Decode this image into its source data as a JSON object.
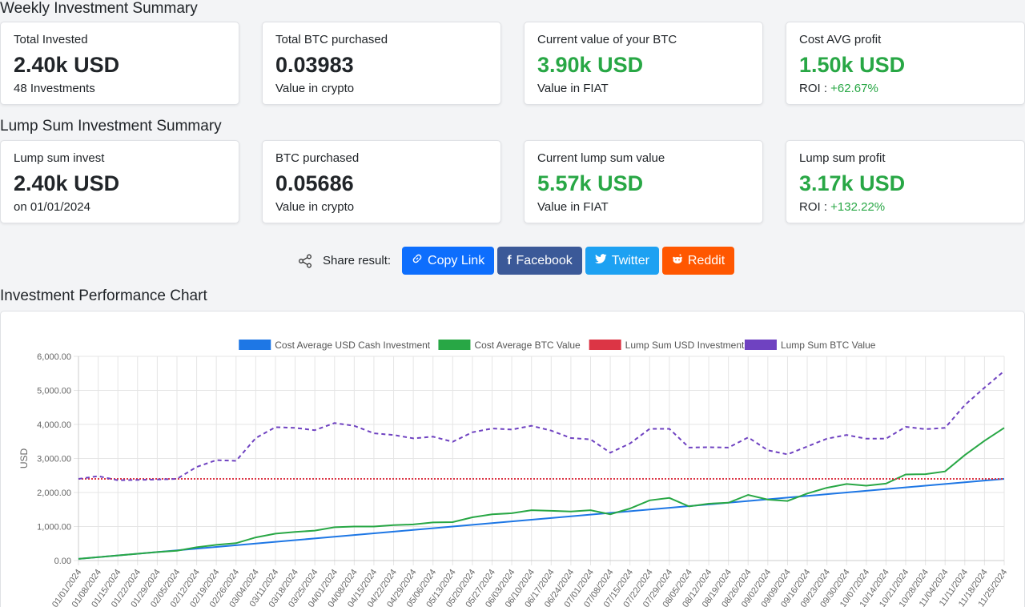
{
  "weekly": {
    "title": "Weekly Investment Summary",
    "cards": [
      {
        "label": "Total Invested",
        "value": "2.40k USD",
        "sub": "48 Investments",
        "green": false
      },
      {
        "label": "Total BTC purchased",
        "value": "0.03983",
        "sub": "Value in crypto",
        "green": false
      },
      {
        "label": "Current value of your BTC",
        "value": "3.90k USD",
        "sub": "Value in FIAT",
        "green": true
      },
      {
        "label": "Cost AVG profit",
        "value": "1.50k USD",
        "sub_prefix": "ROI : ",
        "sub_pct": "+62.67%",
        "green": true
      }
    ]
  },
  "lump": {
    "title": "Lump Sum Investment Summary",
    "cards": [
      {
        "label": "Lump sum invest",
        "value": "2.40k USD",
        "sub": "on 01/01/2024",
        "green": false
      },
      {
        "label": "BTC purchased",
        "value": "0.05686",
        "sub": "Value in crypto",
        "green": false
      },
      {
        "label": "Current lump sum value",
        "value": "5.57k USD",
        "sub": "Value in FIAT",
        "green": true
      },
      {
        "label": "Lump sum profit",
        "value": "3.17k USD",
        "sub_prefix": "ROI : ",
        "sub_pct": "+132.22%",
        "green": true
      }
    ]
  },
  "share": {
    "label": "Share result:",
    "copy": "Copy Link",
    "facebook": "Facebook",
    "twitter": "Twitter",
    "reddit": "Reddit",
    "colors": {
      "copy": "#0d6efd",
      "facebook": "#3b5998",
      "twitter": "#1da1f2",
      "reddit": "#ff5700"
    }
  },
  "chart_title": "Investment Performance Chart",
  "chart_data": {
    "type": "line",
    "ylabel": "USD",
    "ylim": [
      0,
      6000
    ],
    "yticks": [
      "0.00",
      "1,000.00",
      "2,000.00",
      "3,000.00",
      "4,000.00",
      "5,000.00",
      "6,000.00"
    ],
    "x": [
      "01/01/2024",
      "01/08/2024",
      "01/15/2024",
      "01/22/2024",
      "01/29/2024",
      "02/05/2024",
      "02/12/2024",
      "02/19/2024",
      "02/26/2024",
      "03/04/2024",
      "03/11/2024",
      "03/18/2024",
      "03/25/2024",
      "04/01/2024",
      "04/08/2024",
      "04/15/2024",
      "04/22/2024",
      "04/29/2024",
      "05/06/2024",
      "05/13/2024",
      "05/20/2024",
      "05/27/2024",
      "06/03/2024",
      "06/10/2024",
      "06/17/2024",
      "06/24/2024",
      "07/01/2024",
      "07/08/2024",
      "07/15/2024",
      "07/22/2024",
      "07/29/2024",
      "08/05/2024",
      "08/12/2024",
      "08/19/2024",
      "08/26/2024",
      "09/02/2024",
      "09/09/2024",
      "09/16/2024",
      "09/23/2024",
      "09/30/2024",
      "10/07/2024",
      "10/14/2024",
      "10/21/2024",
      "10/28/2024",
      "11/04/2024",
      "11/11/2024",
      "11/18/2024",
      "11/25/2024"
    ],
    "legend_position": "top",
    "grid": true,
    "series": [
      {
        "name": "Cost Average USD Cash Investment",
        "color": "#1e77e5",
        "dashed": false,
        "values": [
          50,
          100,
          150,
          200,
          250,
          300,
          350,
          400,
          450,
          500,
          550,
          600,
          650,
          700,
          750,
          800,
          850,
          900,
          950,
          1000,
          1050,
          1100,
          1150,
          1200,
          1250,
          1300,
          1350,
          1400,
          1450,
          1500,
          1550,
          1600,
          1650,
          1700,
          1750,
          1800,
          1850,
          1900,
          1950,
          2000,
          2050,
          2100,
          2150,
          2200,
          2250,
          2300,
          2350,
          2400
        ]
      },
      {
        "name": "Cost Average BTC Value",
        "color": "#28a745",
        "dashed": false,
        "values": [
          50,
          100,
          150,
          200,
          250,
          290,
          390,
          460,
          510,
          680,
          790,
          840,
          880,
          980,
          1000,
          1000,
          1040,
          1060,
          1120,
          1130,
          1270,
          1360,
          1390,
          1480,
          1460,
          1440,
          1480,
          1360,
          1530,
          1770,
          1840,
          1590,
          1670,
          1700,
          1930,
          1790,
          1750,
          1970,
          2140,
          2250,
          2200,
          2260,
          2530,
          2540,
          2620,
          3100,
          3520,
          3900
        ]
      },
      {
        "name": "Lump Sum USD Investment",
        "color": "#dc3545",
        "dashed": "dotted",
        "values": [
          2400,
          2400,
          2400,
          2400,
          2400,
          2400,
          2400,
          2400,
          2400,
          2400,
          2400,
          2400,
          2400,
          2400,
          2400,
          2400,
          2400,
          2400,
          2400,
          2400,
          2400,
          2400,
          2400,
          2400,
          2400,
          2400,
          2400,
          2400,
          2400,
          2400,
          2400,
          2400,
          2400,
          2400,
          2400,
          2400,
          2400,
          2400,
          2400,
          2400,
          2400,
          2400,
          2400,
          2400,
          2400,
          2400,
          2400,
          2400
        ]
      },
      {
        "name": "Lump Sum BTC Value",
        "color": "#6f42c1",
        "dashed": true,
        "values": [
          2400,
          2480,
          2360,
          2370,
          2380,
          2400,
          2750,
          2950,
          2930,
          3600,
          3920,
          3900,
          3830,
          4040,
          3960,
          3740,
          3690,
          3590,
          3640,
          3490,
          3770,
          3880,
          3850,
          3960,
          3820,
          3600,
          3560,
          3170,
          3440,
          3870,
          3870,
          3320,
          3330,
          3320,
          3620,
          3240,
          3120,
          3350,
          3580,
          3690,
          3580,
          3580,
          3930,
          3860,
          3900,
          4570,
          5080,
          5570
        ]
      }
    ]
  }
}
